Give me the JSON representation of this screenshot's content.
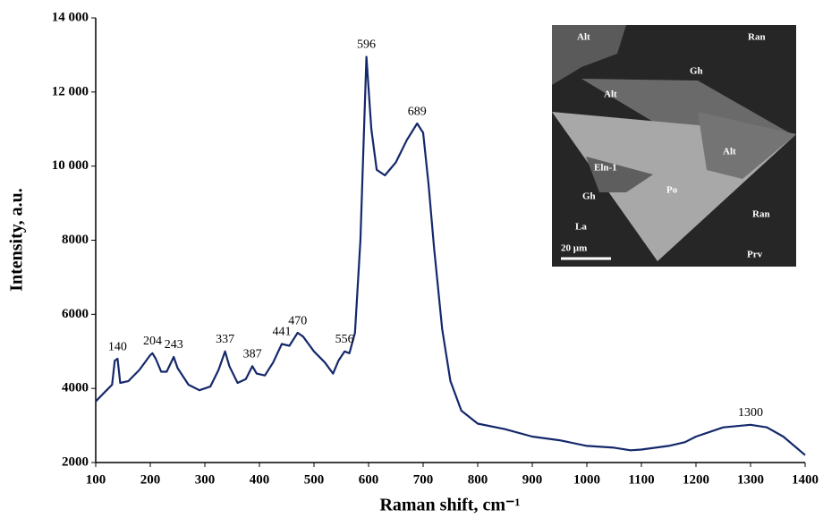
{
  "chart_data": {
    "type": "line",
    "x_label": "Raman shift, cm⁻¹",
    "y_label": "Intensity, a.u.",
    "color": "#14286b",
    "x": [
      100,
      110,
      120,
      130,
      135,
      140,
      145,
      160,
      180,
      200,
      204,
      210,
      220,
      230,
      243,
      250,
      270,
      290,
      310,
      325,
      337,
      345,
      360,
      375,
      387,
      395,
      410,
      425,
      441,
      455,
      470,
      480,
      500,
      520,
      535,
      545,
      556,
      565,
      575,
      585,
      596,
      605,
      615,
      630,
      650,
      670,
      689,
      700,
      710,
      720,
      735,
      750,
      770,
      800,
      850,
      900,
      950,
      1000,
      1050,
      1080,
      1100,
      1150,
      1180,
      1200,
      1250,
      1300,
      1330,
      1360,
      1400
    ],
    "values": [
      3650,
      3800,
      3950,
      4100,
      4750,
      4800,
      4150,
      4200,
      4500,
      4900,
      4950,
      4800,
      4450,
      4450,
      4850,
      4550,
      4100,
      3950,
      4050,
      4500,
      5000,
      4600,
      4150,
      4250,
      4600,
      4400,
      4350,
      4700,
      5200,
      5150,
      5500,
      5400,
      5000,
      4700,
      4400,
      4750,
      5000,
      4950,
      5500,
      8000,
      12950,
      11000,
      9900,
      9750,
      10100,
      10700,
      11150,
      10900,
      9500,
      7800,
      5600,
      4200,
      3400,
      3050,
      2900,
      2700,
      2600,
      2450,
      2400,
      2330,
      2350,
      2450,
      2550,
      2700,
      2950,
      3020,
      2950,
      2700,
      2200
    ],
    "annotations": [
      140,
      204,
      243,
      337,
      387,
      441,
      470,
      556,
      596,
      689,
      1300
    ],
    "xlim": [
      100,
      1400
    ],
    "xticks": [
      100,
      200,
      300,
      400,
      500,
      600,
      700,
      800,
      900,
      1000,
      1100,
      1200,
      1300,
      1400
    ],
    "ylim": [
      2000,
      14000
    ],
    "yticks": [
      2000,
      4000,
      6000,
      8000,
      {
        "value": 10000,
        "label": "10 000"
      },
      {
        "value": 12000,
        "label": "12 000"
      },
      {
        "value": 14000,
        "label": "14 000"
      }
    ],
    "inset_labels": [
      "Alt",
      "Ran",
      "Gh",
      "Alt",
      "Alt",
      "Eln-1",
      "Po",
      "Gh",
      "La",
      "Ran",
      "Prv",
      "20 µm"
    ]
  }
}
